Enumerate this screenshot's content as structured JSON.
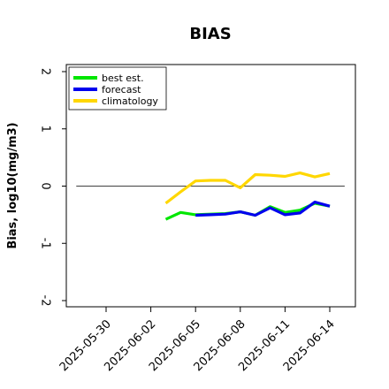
{
  "chart_data": {
    "type": "line",
    "title": "BIAS",
    "xlabel": "",
    "ylabel": "Bias, log10(mg/m3)",
    "ylim": [
      -2,
      2
    ],
    "xlim": [
      "2025-05-27",
      "2025-06-16"
    ],
    "yticks": [
      -2,
      -1,
      0,
      1,
      2
    ],
    "xticks": [
      "2025-05-30",
      "2025-06-02",
      "2025-06-05",
      "2025-06-08",
      "2025-06-11",
      "2025-06-14"
    ],
    "highlighted_tick": "2025-06-05",
    "highlight_color": "#2e8b2e",
    "reference_line": 0,
    "legend_position": "top-left",
    "grid": false,
    "series": [
      {
        "name": "best est.",
        "color": "#00e600",
        "x": [
          "2025-06-03",
          "2025-06-04",
          "2025-06-05",
          "2025-06-06",
          "2025-06-07",
          "2025-06-08",
          "2025-06-09",
          "2025-06-10",
          "2025-06-11",
          "2025-06-12",
          "2025-06-13",
          "2025-06-14"
        ],
        "values": [
          -0.58,
          -0.46,
          -0.5,
          -0.49,
          -0.48,
          -0.45,
          -0.51,
          -0.36,
          -0.46,
          -0.42,
          -0.3,
          -0.35
        ]
      },
      {
        "name": "forecast",
        "color": "#0000ee",
        "x": [
          "2025-06-05",
          "2025-06-06",
          "2025-06-07",
          "2025-06-08",
          "2025-06-09",
          "2025-06-10",
          "2025-06-11",
          "2025-06-12",
          "2025-06-13",
          "2025-06-14"
        ],
        "values": [
          -0.51,
          -0.5,
          -0.49,
          -0.45,
          -0.51,
          -0.38,
          -0.5,
          -0.47,
          -0.28,
          -0.35
        ]
      },
      {
        "name": "climatology",
        "color": "#ffd700",
        "x": [
          "2025-06-03",
          "2025-06-04",
          "2025-06-05",
          "2025-06-06",
          "2025-06-07",
          "2025-06-08",
          "2025-06-09",
          "2025-06-10",
          "2025-06-11",
          "2025-06-12",
          "2025-06-13",
          "2025-06-14"
        ],
        "values": [
          -0.3,
          -0.1,
          0.09,
          0.1,
          0.1,
          -0.03,
          0.2,
          0.19,
          0.17,
          0.23,
          0.16,
          0.22
        ]
      }
    ]
  }
}
